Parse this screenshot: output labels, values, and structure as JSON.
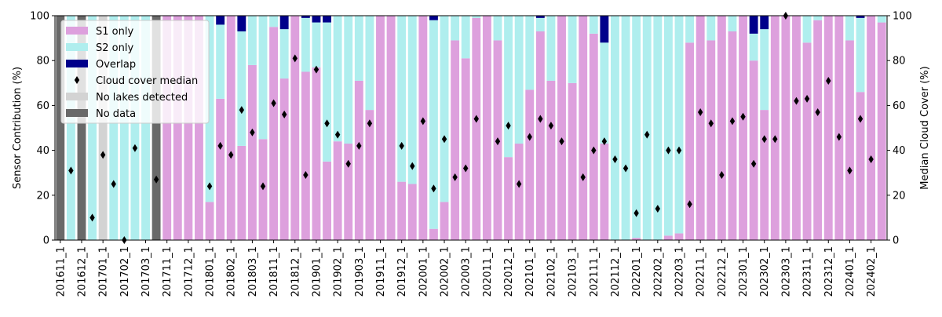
{
  "chart_data": {
    "type": "bar",
    "stacked": true,
    "ylabel": "Sensor Contribution (%)",
    "y2label": "Median Cloud Cover (%)",
    "ylim": [
      0,
      100
    ],
    "y2lim": [
      0,
      100
    ],
    "yticks": [
      0,
      20,
      40,
      60,
      80,
      100
    ],
    "grid": false,
    "legend_position": "top-left",
    "legend": [
      {
        "key": "s1",
        "label": "S1 only",
        "color": "#dda0dd",
        "kind": "patch"
      },
      {
        "key": "s2",
        "label": "S2 only",
        "color": "#afeeee",
        "kind": "patch"
      },
      {
        "key": "overlap",
        "label": "Overlap",
        "color": "#00008b",
        "kind": "patch"
      },
      {
        "key": "cloud",
        "label": "Cloud cover median",
        "color": "#000000",
        "kind": "marker"
      },
      {
        "key": "nolakes",
        "label": "No lakes detected",
        "color": "#d3d3d3",
        "kind": "patch"
      },
      {
        "key": "nodata",
        "label": "No data",
        "color": "#696969",
        "kind": "patch"
      }
    ],
    "xtick_labels": [
      "201611_1",
      "201612_1",
      "201701_1",
      "201702_1",
      "201703_1",
      "201711_1",
      "201712_1",
      "201801_1",
      "201802_1",
      "201803_1",
      "201811_1",
      "201812_1",
      "201901_1",
      "201902_1",
      "201903_1",
      "201911_1",
      "201912_1",
      "202001_1",
      "202002_1",
      "202003_1",
      "202011_1",
      "202012_1",
      "202101_1",
      "202102_1",
      "202103_1",
      "202111_1",
      "202112_1",
      "202201_1",
      "202202_1",
      "202203_1",
      "202211_1",
      "202212_1",
      "202301_1",
      "202302_1",
      "202303_1",
      "202311_1",
      "202312_1",
      "202401_1",
      "202402_1"
    ],
    "tick_step": 2,
    "categories": [
      "201611_1",
      "201611_2",
      "201612_1",
      "201612_2",
      "201701_1",
      "201701_2",
      "201702_1",
      "201702_2",
      "201703_1",
      "201703_2",
      "201711_1",
      "201711_2",
      "201712_1",
      "201712_2",
      "201801_1",
      "201801_2",
      "201802_1",
      "201802_2",
      "201803_1",
      "201803_2",
      "201811_1",
      "201811_2",
      "201812_1",
      "201812_2",
      "201901_1",
      "201901_2",
      "201902_1",
      "201902_2",
      "201903_1",
      "201903_2",
      "201911_1",
      "201911_2",
      "201912_1",
      "201912_2",
      "202001_1",
      "202001_2",
      "202002_1",
      "202002_2",
      "202003_1",
      "202003_2",
      "202011_1",
      "202011_2",
      "202012_1",
      "202012_2",
      "202101_1",
      "202101_2",
      "202102_1",
      "202102_2",
      "202103_1",
      "202103_2",
      "202111_1",
      "202111_2",
      "202112_1",
      "202112_2",
      "202201_1",
      "202201_2",
      "202202_1",
      "202202_2",
      "202203_1",
      "202203_2",
      "202211_1",
      "202211_2",
      "202212_1",
      "202212_2",
      "202301_1",
      "202301_2",
      "202302_1",
      "202302_2",
      "202303_1",
      "202303_2",
      "202311_1",
      "202311_2",
      "202312_1",
      "202312_2",
      "202401_1",
      "202401_2",
      "202402_1",
      "202402_2"
    ],
    "status": [
      "nodata",
      "ok",
      "nodata",
      "ok",
      "nolakes",
      "ok",
      "ok",
      "ok",
      "ok",
      "nodata",
      "ok",
      "ok",
      "ok",
      "ok",
      "ok",
      "ok",
      "ok",
      "ok",
      "ok",
      "ok",
      "ok",
      "ok",
      "ok",
      "ok",
      "ok",
      "ok",
      "ok",
      "ok",
      "ok",
      "ok",
      "ok",
      "ok",
      "ok",
      "ok",
      "ok",
      "ok",
      "ok",
      "ok",
      "ok",
      "ok",
      "ok",
      "ok",
      "ok",
      "ok",
      "ok",
      "ok",
      "ok",
      "ok",
      "ok",
      "ok",
      "ok",
      "ok",
      "ok",
      "ok",
      "ok",
      "ok",
      "ok",
      "ok",
      "ok",
      "ok",
      "ok",
      "ok",
      "ok",
      "ok",
      "ok",
      "ok",
      "ok",
      "ok",
      "ok",
      "ok",
      "ok",
      "ok",
      "ok",
      "ok",
      "ok",
      "ok",
      "ok",
      "ok"
    ],
    "series": [
      {
        "key": "s1",
        "name": "S1 only",
        "values": [
          0,
          0,
          0,
          0,
          0,
          0,
          0,
          0,
          0,
          0,
          100,
          100,
          100,
          100,
          17,
          63,
          100,
          42,
          78,
          45,
          95,
          72,
          100,
          75,
          77,
          35,
          44,
          43,
          71,
          58,
          100,
          100,
          26,
          25,
          100,
          5,
          17,
          89,
          81,
          99,
          100,
          89,
          37,
          43,
          67,
          93,
          71,
          100,
          70,
          100,
          92,
          43,
          0,
          0,
          1,
          0,
          0,
          2,
          3,
          88,
          100,
          89,
          100,
          93,
          100,
          80,
          58,
          100,
          100,
          100,
          88,
          98,
          100,
          100,
          89,
          66,
          100,
          97
        ]
      },
      {
        "key": "s2",
        "name": "S2 only",
        "values": [
          0,
          100,
          0,
          100,
          0,
          100,
          100,
          100,
          100,
          0,
          0,
          0,
          0,
          0,
          83,
          33,
          0,
          51,
          22,
          55,
          5,
          22,
          0,
          24,
          20,
          62,
          56,
          57,
          29,
          42,
          0,
          0,
          74,
          75,
          0,
          93,
          83,
          11,
          19,
          1,
          0,
          11,
          63,
          57,
          33,
          6,
          29,
          0,
          30,
          0,
          8,
          45,
          100,
          100,
          99,
          100,
          100,
          98,
          97,
          12,
          0,
          11,
          0,
          7,
          0,
          12,
          36,
          0,
          0,
          0,
          12,
          2,
          0,
          0,
          11,
          33,
          0,
          3
        ]
      },
      {
        "key": "overlap",
        "name": "Overlap",
        "values": [
          0,
          0,
          0,
          0,
          0,
          0,
          0,
          0,
          0,
          0,
          0,
          0,
          0,
          0,
          0,
          4,
          0,
          7,
          0,
          0,
          0,
          6,
          0,
          1,
          3,
          3,
          0,
          0,
          0,
          0,
          0,
          0,
          0,
          0,
          0,
          2,
          0,
          0,
          0,
          0,
          0,
          0,
          0,
          0,
          0,
          1,
          0,
          0,
          0,
          0,
          0,
          12,
          0,
          0,
          0,
          0,
          0,
          0,
          0,
          0,
          0,
          0,
          0,
          0,
          0,
          8,
          6,
          0,
          0,
          0,
          0,
          0,
          0,
          0,
          0,
          1,
          0,
          0
        ]
      }
    ],
    "cloud_median": [
      null,
      31,
      null,
      10,
      38,
      25,
      0,
      41,
      null,
      27,
      null,
      null,
      null,
      null,
      24,
      42,
      38,
      58,
      48,
      24,
      61,
      56,
      81,
      29,
      76,
      52,
      47,
      34,
      42,
      52,
      null,
      null,
      42,
      33,
      53,
      23,
      45,
      28,
      32,
      54,
      null,
      44,
      51,
      25,
      46,
      54,
      51,
      44,
      null,
      28,
      40,
      44,
      36,
      32,
      12,
      47,
      14,
      40,
      40,
      16,
      57,
      52,
      29,
      53,
      55,
      34,
      45,
      45,
      100,
      62,
      63,
      57,
      71,
      46,
      31,
      54,
      36,
      null
    ]
  }
}
